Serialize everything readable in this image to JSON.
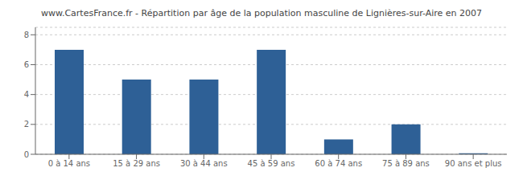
{
  "chart_data": {
    "type": "bar",
    "title": "www.CartesFrance.fr - Répartition par âge de la population masculine de Lignières-sur-Aire en 2007",
    "categories": [
      "0 à 14 ans",
      "15 à 29 ans",
      "30 à 44 ans",
      "45 à 59 ans",
      "60 à 74 ans",
      "75 à 89 ans",
      "90 ans et plus"
    ],
    "values": [
      7,
      5,
      5,
      7,
      1,
      2,
      0.07
    ],
    "color": "#2e6096",
    "ylim": [
      0,
      8.5
    ],
    "yticks": [
      0,
      2,
      4,
      6,
      8
    ],
    "grid": true
  }
}
